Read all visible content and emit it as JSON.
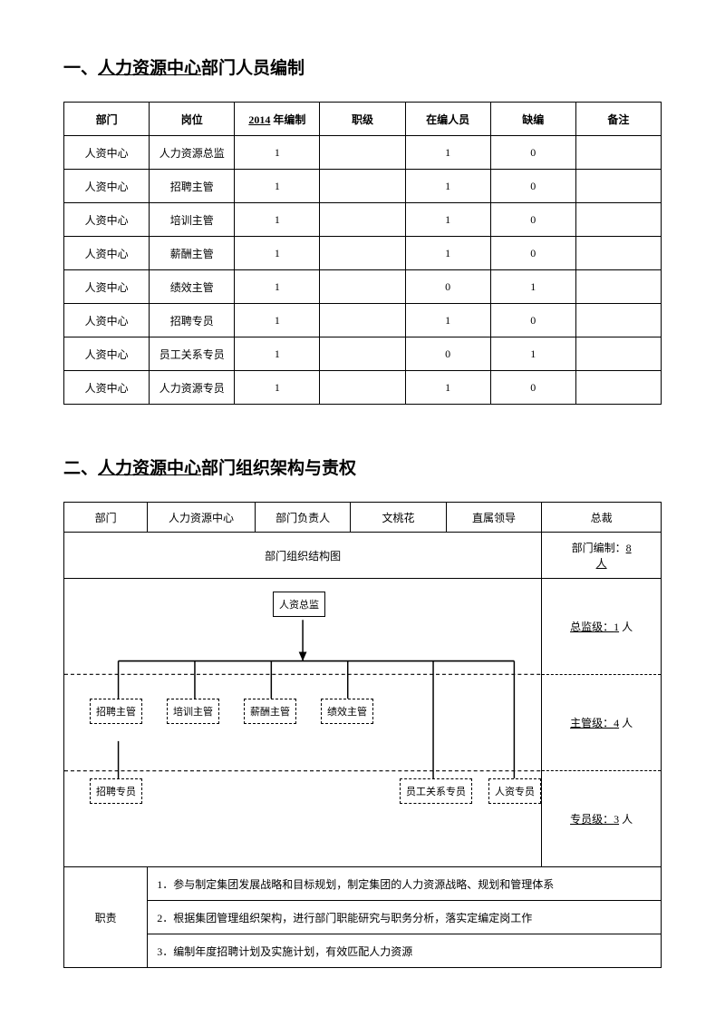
{
  "section1": {
    "heading_prefix": "一、",
    "heading_underline": "人力资源中心",
    "heading_suffix": "部门人员编制",
    "table": {
      "columns": [
        "部门",
        "岗位",
        "2014 年编制",
        "职级",
        "在编人员",
        "缺编",
        "备注"
      ],
      "year_label": "2014",
      "year_suffix": " 年编制",
      "rows": [
        [
          "人资中心",
          "人力资源总监",
          "1",
          "",
          "1",
          "0",
          ""
        ],
        [
          "人资中心",
          "招聘主管",
          "1",
          "",
          "1",
          "0",
          ""
        ],
        [
          "人资中心",
          "培训主管",
          "1",
          "",
          "1",
          "0",
          ""
        ],
        [
          "人资中心",
          "薪酬主管",
          "1",
          "",
          "1",
          "0",
          ""
        ],
        [
          "人资中心",
          "绩效主管",
          "1",
          "",
          "0",
          "1",
          ""
        ],
        [
          "人资中心",
          "招聘专员",
          "1",
          "",
          "1",
          "0",
          ""
        ],
        [
          "人资中心",
          "员工关系专员",
          "1",
          "",
          "0",
          "1",
          ""
        ],
        [
          "人资中心",
          "人力资源专员",
          "1",
          "",
          "1",
          "0",
          ""
        ]
      ]
    }
  },
  "section2": {
    "heading_prefix": "二、",
    "heading_underline": "人力资源中心",
    "heading_suffix": "部门组织架构与责权",
    "header_row": [
      "部门",
      "人力资源中心",
      "部门负责人",
      "文桃花",
      "直属领导",
      "总裁"
    ],
    "chart_title": "部门组织结构图",
    "side": {
      "count_prefix": "部门编制：",
      "count_num": "8",
      "count_suffix": "人",
      "level1_prefix": "总监级：",
      "level1_num": "1",
      "level1_suffix": " 人",
      "level2_prefix": "主管级：",
      "level2_num": "4",
      "level2_suffix": " 人",
      "level3_prefix": "专员级：",
      "level3_num": "3",
      "level3_suffix": " 人"
    },
    "nodes": {
      "top": "人资总监",
      "mgr1": "招聘主管",
      "mgr2": "培训主管",
      "mgr3": "薪酬主管",
      "mgr4": "绩效主管",
      "sp1": "招聘专员",
      "sp2": "员工关系专员",
      "sp3": "人资专员"
    },
    "resp_label": "职责",
    "responsibilities": [
      "1．参与制定集团发展战略和目标规划，制定集团的人力资源战略、规划和管理体系",
      "2．根据集团管理组织架构，进行部门职能研究与职务分析，落实定编定岗工作",
      "3．编制年度招聘计划及实施计划，有效匹配人力资源"
    ]
  }
}
